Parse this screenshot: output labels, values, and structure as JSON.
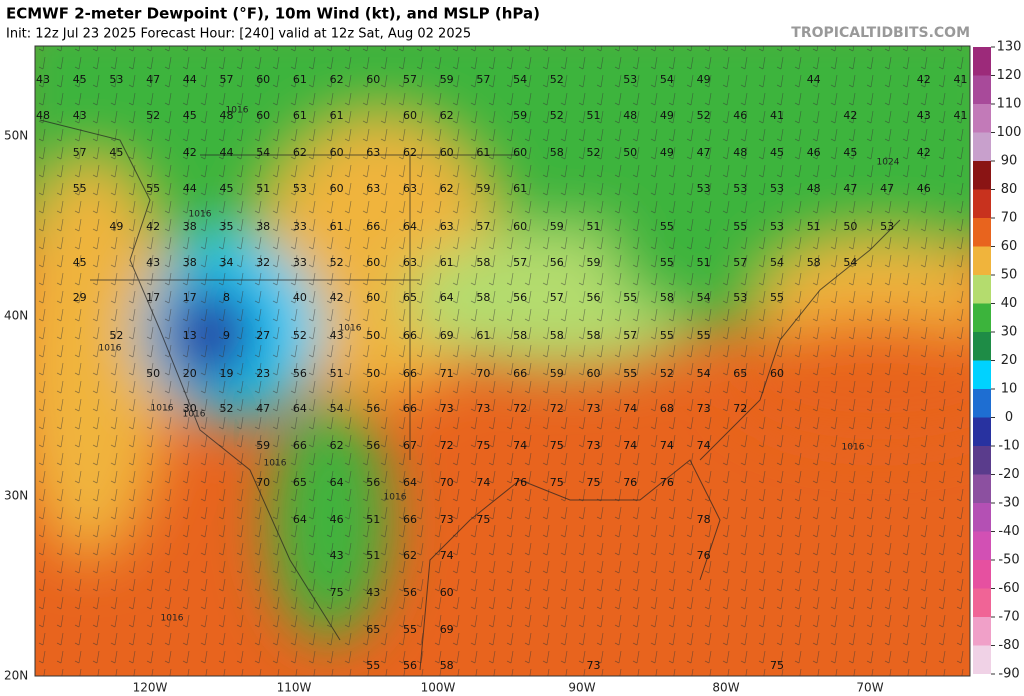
{
  "header": {
    "title": "ECMWF 2-meter Dewpoint (°F), 10m Wind (kt), and MSLP (hPa)",
    "subtitle": "Init: 12z Jul 23 2025   Forecast Hour: [240]   valid at 12z Sat, Aug 02 2025",
    "site": "TROPICALTIDBITS.COM"
  },
  "map": {
    "lat_labels": [
      "50N",
      "40N",
      "30N",
      "20N"
    ],
    "lon_labels": [
      "120W",
      "110W",
      "100W",
      "90W",
      "80W",
      "70W"
    ],
    "dewpoint_labels": [
      [
        43,
        45,
        53,
        47,
        44,
        57,
        60,
        61,
        62,
        60,
        57,
        59,
        57,
        54,
        52,
        null,
        53,
        54,
        49,
        null,
        null,
        44,
        null,
        null,
        42,
        41
      ],
      [
        48,
        43,
        null,
        52,
        45,
        48,
        60,
        61,
        61,
        null,
        60,
        62,
        null,
        59,
        52,
        51,
        48,
        49,
        52,
        46,
        41,
        null,
        42,
        null,
        43,
        41
      ],
      [
        null,
        57,
        45,
        null,
        42,
        44,
        54,
        62,
        60,
        63,
        62,
        60,
        61,
        60,
        58,
        52,
        50,
        49,
        47,
        48,
        45,
        46,
        45,
        null,
        42,
        null
      ],
      [
        null,
        55,
        null,
        55,
        44,
        45,
        51,
        53,
        60,
        63,
        63,
        62,
        59,
        61,
        null,
        null,
        null,
        null,
        53,
        53,
        53,
        48,
        47,
        47,
        46,
        null
      ],
      [
        null,
        null,
        49,
        42,
        38,
        35,
        38,
        33,
        61,
        66,
        64,
        63,
        57,
        60,
        59,
        51,
        null,
        55,
        null,
        55,
        53,
        51,
        50,
        53,
        null,
        null
      ],
      [
        null,
        45,
        null,
        43,
        38,
        34,
        32,
        33,
        52,
        60,
        63,
        61,
        58,
        57,
        56,
        59,
        null,
        55,
        51,
        57,
        54,
        58,
        54,
        null,
        null,
        null
      ],
      [
        null,
        29,
        null,
        17,
        17,
        8,
        null,
        40,
        42,
        60,
        65,
        64,
        58,
        56,
        57,
        56,
        55,
        58,
        54,
        53,
        55,
        null,
        null,
        null,
        null,
        null
      ],
      [
        null,
        null,
        52,
        null,
        13,
        9,
        27,
        52,
        43,
        50,
        66,
        69,
        61,
        58,
        58,
        58,
        57,
        55,
        55,
        null,
        null,
        null,
        null,
        null,
        null,
        null
      ],
      [
        null,
        null,
        null,
        50,
        20,
        19,
        23,
        56,
        51,
        50,
        66,
        71,
        70,
        66,
        59,
        60,
        55,
        52,
        54,
        65,
        60,
        null,
        null,
        null,
        null,
        null
      ],
      [
        null,
        null,
        null,
        null,
        30,
        52,
        47,
        64,
        54,
        56,
        66,
        73,
        73,
        72,
        72,
        73,
        74,
        68,
        73,
        72,
        null,
        null,
        null,
        null,
        null,
        null
      ],
      [
        null,
        null,
        null,
        null,
        null,
        null,
        59,
        66,
        62,
        56,
        67,
        72,
        75,
        74,
        75,
        73,
        74,
        74,
        74,
        null,
        null,
        null,
        null,
        null,
        null,
        null
      ],
      [
        null,
        null,
        null,
        null,
        null,
        null,
        70,
        65,
        64,
        56,
        64,
        70,
        74,
        76,
        75,
        75,
        76,
        76,
        null,
        null,
        null,
        null,
        null,
        null,
        null,
        null
      ],
      [
        null,
        null,
        null,
        null,
        null,
        null,
        null,
        64,
        46,
        51,
        66,
        73,
        75,
        null,
        null,
        null,
        null,
        null,
        78,
        null,
        null,
        null,
        null,
        null,
        null,
        null
      ],
      [
        null,
        null,
        null,
        null,
        null,
        null,
        null,
        null,
        43,
        51,
        62,
        74,
        null,
        null,
        null,
        null,
        null,
        null,
        76,
        null,
        null,
        null,
        null,
        null,
        null,
        null
      ],
      [
        null,
        null,
        null,
        null,
        null,
        null,
        null,
        null,
        75,
        43,
        56,
        60,
        null,
        null,
        null,
        null,
        null,
        null,
        null,
        null,
        null,
        null,
        null,
        null,
        null,
        null
      ],
      [
        null,
        null,
        null,
        null,
        null,
        null,
        null,
        null,
        null,
        65,
        55,
        69,
        null,
        null,
        null,
        null,
        null,
        null,
        null,
        null,
        null,
        null,
        null,
        null,
        null,
        null
      ],
      [
        null,
        null,
        null,
        null,
        null,
        null,
        null,
        null,
        null,
        55,
        56,
        58,
        null,
        null,
        null,
        73,
        null,
        null,
        null,
        null,
        75,
        null,
        null,
        null,
        null,
        null
      ]
    ],
    "isobar_labels": [
      "1016",
      "1016",
      "1016",
      "1016",
      "1016",
      "1016",
      "1016",
      "1016",
      "1016",
      "1024",
      "1016"
    ]
  },
  "colorbar": {
    "lim": [
      -90,
      130
    ],
    "ticks": [
      130,
      120,
      110,
      100,
      90,
      80,
      70,
      60,
      50,
      40,
      30,
      20,
      10,
      0,
      -10,
      -20,
      -30,
      -40,
      -50,
      -60,
      -70,
      -80,
      -90
    ],
    "colors": [
      "#9c2a7a",
      "#a84a9a",
      "#c27ab8",
      "#c8a0cc",
      "#8a1414",
      "#c8321e",
      "#e8641e",
      "#f0b43c",
      "#b4dc6e",
      "#3cb43c",
      "#1e8c46",
      "#00d2ff",
      "#1e6ed2",
      "#2832a0",
      "#5a3c8c",
      "#8c50a0",
      "#b450b4",
      "#d250b4",
      "#e650a0",
      "#f06496",
      "#f0a0c8",
      "#f0d2e6"
    ]
  }
}
